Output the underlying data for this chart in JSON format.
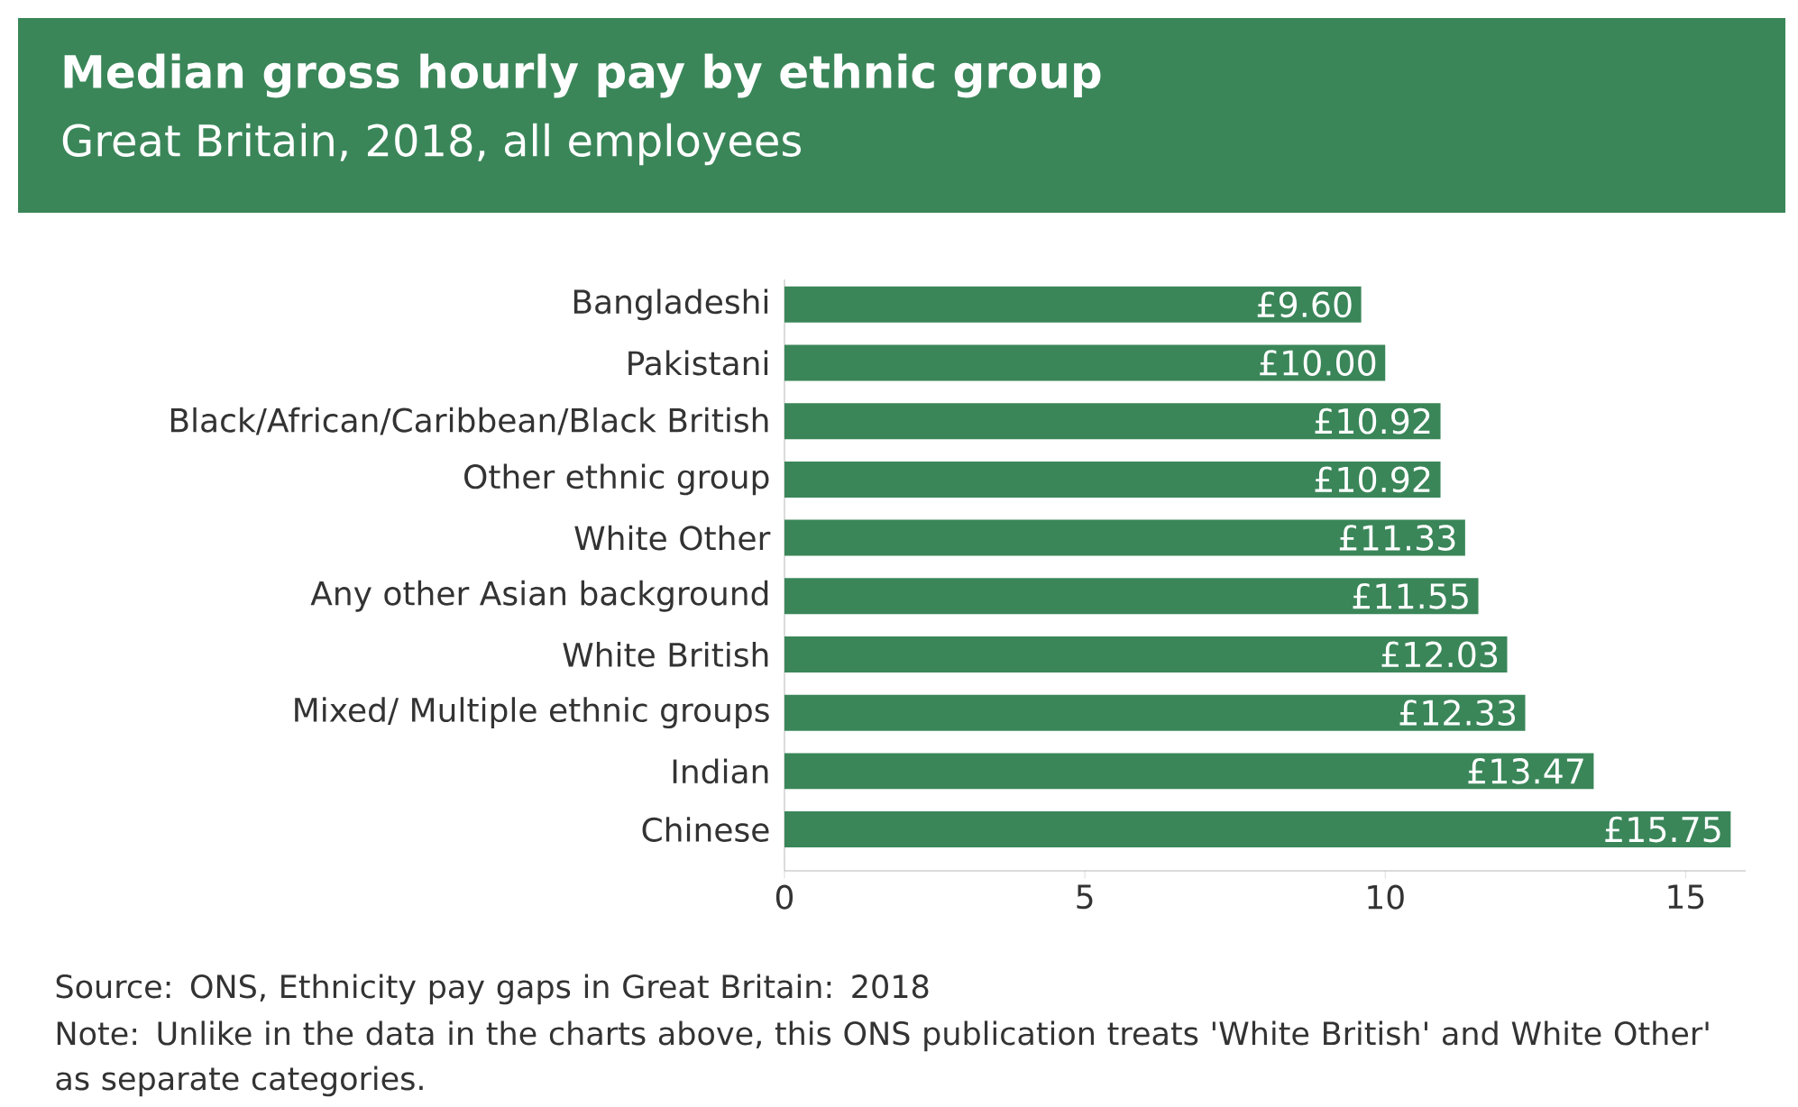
{
  "chart_data": {
    "type": "bar",
    "orientation": "horizontal",
    "title": "Median gross hourly pay by ethnic group",
    "subtitle": "Great Britain, 2018, all employees",
    "categories": [
      "Bangladeshi",
      "Pakistani",
      "Black/African/Caribbean/Black British",
      "Other ethnic group",
      "White Other",
      "Any other Asian background",
      "White British",
      "Mixed/ Multiple ethnic groups",
      "Indian",
      "Chinese"
    ],
    "values": [
      9.6,
      10.0,
      10.92,
      10.92,
      11.33,
      11.55,
      12.03,
      12.33,
      13.47,
      15.75
    ],
    "value_labels": [
      "£9.60",
      "£10.00",
      "£10.92",
      "£10.92",
      "£11.33",
      "£11.55",
      "£12.03",
      "£12.33",
      "£13.47",
      "£15.75"
    ],
    "color": "#3a8659",
    "xlim": [
      0,
      16
    ],
    "xticks": [
      0,
      5,
      10,
      15
    ],
    "annotations": [
      "Source: ONS, Ethnicity pay gaps in Great Britain: 2018",
      "Note: Unlike in the data in the charts above, this ONS publication treats 'White British' and White Other' as separate categories."
    ]
  }
}
